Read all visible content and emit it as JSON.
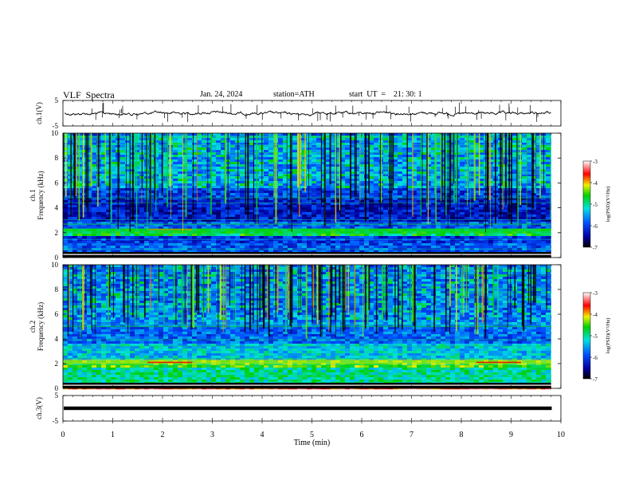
{
  "header": {
    "title": "VLF  Spectra",
    "date": "Jan. 24, 2024",
    "station": "station=ATH",
    "start_ut": "start  UT  =    21: 30: 1"
  },
  "chart_data": [
    {
      "type": "line",
      "panel": "ch1-waveform",
      "ylabel": "ch.1(V)",
      "ylim": [
        -5,
        5
      ],
      "yticks": [
        "5",
        "-5"
      ],
      "xlim": [
        0,
        10
      ],
      "baseline": 0,
      "amplitude": 0.8,
      "color": "#000000"
    },
    {
      "type": "heatmap",
      "panel": "ch1-spectrogram",
      "ylabel": "ch.1\nFrequency (kHz)",
      "ylim": [
        0,
        10
      ],
      "yticks": [
        "0",
        "2",
        "4",
        "6",
        "8",
        "10"
      ],
      "xlim": [
        0,
        10
      ],
      "data_end_min": 9.8,
      "colorbar": {
        "label": "log(PSD)(V²/Hz)",
        "range": [
          -7,
          -3
        ],
        "ticks": [
          "-3",
          "-4",
          "-5",
          "-6",
          "-7"
        ]
      }
    },
    {
      "type": "heatmap",
      "panel": "ch2-spectrogram",
      "ylabel": "ch.2\nFrequency (kHz)",
      "ylim": [
        0,
        10
      ],
      "yticks": [
        "0",
        "2",
        "4",
        "6",
        "8",
        "10"
      ],
      "xlim": [
        0,
        10
      ],
      "data_end_min": 9.8,
      "colorbar": {
        "label": "log(PSD)(V²/Hz)",
        "range": [
          -7,
          -3
        ],
        "ticks": [
          "-3",
          "-4",
          "-5",
          "-6",
          "-7"
        ]
      }
    },
    {
      "type": "line",
      "panel": "ch3-waveform",
      "ylabel": "ch.3(V)",
      "ylim": [
        -5,
        5
      ],
      "yticks": [
        "5",
        "-5"
      ],
      "xlim": [
        0,
        10
      ],
      "baseline": 0,
      "xlabel": "Time  (min)",
      "xticks": [
        "0",
        "1",
        "2",
        "3",
        "4",
        "5",
        "6",
        "7",
        "8",
        "9",
        "10"
      ],
      "color": "#000000"
    }
  ]
}
